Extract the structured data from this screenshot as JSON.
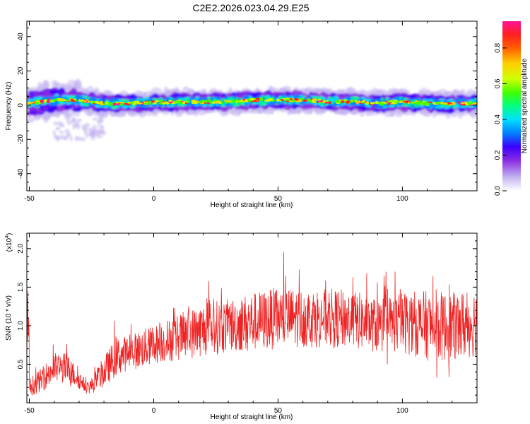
{
  "title": "C2E2.2026.023.04.29.E25",
  "chart_data": [
    {
      "type": "heatmap",
      "xlabel": "Height of straight line (km)",
      "ylabel": "Frequency (Hz)",
      "xlim": [
        -51,
        130
      ],
      "ylim": [
        -50,
        49
      ],
      "xticks": [
        -50,
        0,
        50,
        100
      ],
      "yticks": [
        40,
        20,
        0,
        -20,
        -40
      ],
      "grid": false,
      "colorbar": {
        "label": "Normalized spectral amplitude",
        "range": [
          0,
          0.95
        ],
        "ticks": [
          "0.0",
          "0.2",
          "0.4",
          "0.6",
          "0.8"
        ],
        "ticks_values": [
          0,
          0.2,
          0.4,
          0.6,
          0.8
        ]
      },
      "colormap": [
        "#c4b4f0",
        "#8a2be2",
        "#3a00ff",
        "#0080ff",
        "#00e0ff",
        "#00ff80",
        "#40ff00",
        "#d0ff00",
        "#ffd000",
        "#ff6000",
        "#ff2020",
        "#ff1493"
      ],
      "centerline": [
        [
          -50,
          1
        ],
        [
          -40,
          3
        ],
        [
          -30,
          3
        ],
        [
          -20,
          1
        ],
        [
          -10,
          1
        ],
        [
          0,
          1.5
        ],
        [
          10,
          2
        ],
        [
          20,
          2
        ],
        [
          30,
          2
        ],
        [
          40,
          3
        ],
        [
          50,
          3
        ],
        [
          60,
          3
        ],
        [
          70,
          2
        ],
        [
          80,
          2
        ],
        [
          90,
          1
        ],
        [
          100,
          2
        ],
        [
          110,
          1
        ],
        [
          120,
          1
        ],
        [
          130,
          1
        ]
      ]
    },
    {
      "type": "line",
      "xlabel": "Height of straight line (km)",
      "ylabel": "SNR (10 * v/v)",
      "y_multiplier": "(x10",
      "y_multiplier_exp": "4",
      "y_multiplier_close": ")",
      "xlim": [
        -51,
        130
      ],
      "ylim": [
        0,
        2.2
      ],
      "xticks": [
        -50,
        0,
        50,
        100
      ],
      "yticks": [
        0.5,
        1.0,
        1.5,
        2.0
      ],
      "ytick_labels": [
        "0.5",
        "1.0",
        "1.5",
        "2.0"
      ],
      "color": "#ee2222",
      "grid": false,
      "x": [
        -50,
        -45,
        -40,
        -35,
        -30,
        -27,
        -25,
        -20,
        -15,
        -10,
        -5,
        0,
        10,
        20,
        30,
        40,
        50,
        60,
        70,
        80,
        90,
        100,
        110,
        120,
        130
      ],
      "y": [
        0.2,
        0.3,
        0.45,
        0.45,
        0.3,
        0.2,
        0.22,
        0.4,
        0.6,
        0.65,
        0.7,
        0.75,
        0.85,
        0.95,
        1.0,
        1.05,
        1.1,
        1.1,
        1.1,
        1.08,
        1.0,
        1.05,
        1.0,
        0.98,
        1.05
      ],
      "noise_amplitude": [
        0.12,
        0.15,
        0.2,
        0.2,
        0.12,
        0.08,
        0.1,
        0.2,
        0.25,
        0.22,
        0.25,
        0.25,
        0.3,
        0.35,
        0.35,
        0.38,
        0.4,
        0.38,
        0.38,
        0.38,
        0.35,
        0.4,
        0.45,
        0.45,
        0.45
      ]
    }
  ]
}
